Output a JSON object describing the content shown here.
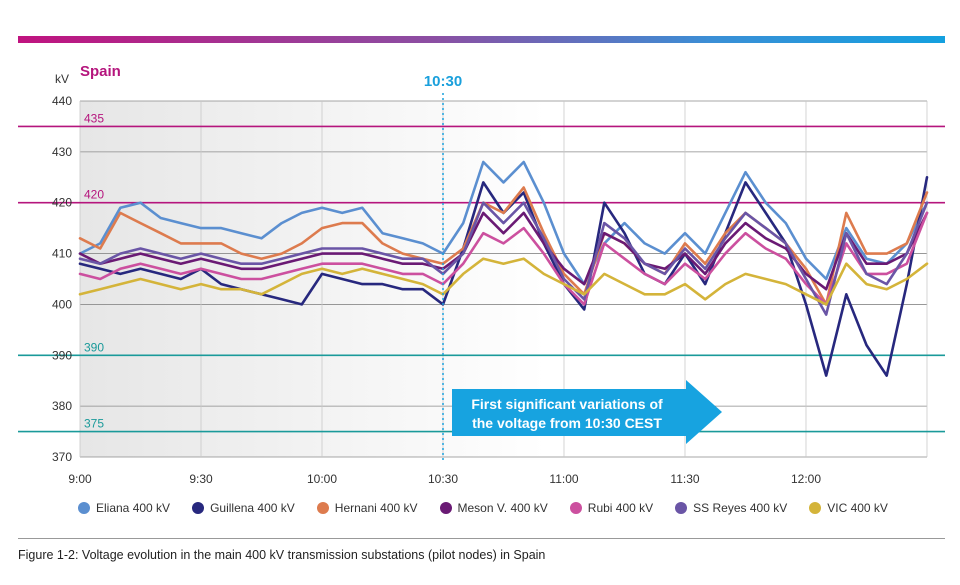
{
  "colors": {
    "accent_magenta": "#b5157d",
    "limit_teal": "#1a9a9a",
    "marker_blue": "#1aa0dc",
    "annotation_fill": "#17a3e0"
  },
  "chart_data": {
    "type": "line",
    "title": "Spain",
    "ylabel": "kV",
    "ylim": [
      370,
      440
    ],
    "yticks": [
      "370",
      "380",
      "390",
      "400",
      "410",
      "420",
      "430",
      "440"
    ],
    "xlim": [
      "9:00",
      "12:30"
    ],
    "xticks": [
      "9:00",
      "9:30",
      "10:00",
      "10:30",
      "11:00",
      "11:30",
      "12:00"
    ],
    "grid": true,
    "legend_position": "bottom",
    "reference_lines": [
      {
        "label": "435",
        "value": 435,
        "color": "#b5157d"
      },
      {
        "label": "420",
        "value": 420,
        "color": "#b5157d"
      },
      {
        "label": "390",
        "value": 390,
        "color": "#1a9a9a"
      },
      {
        "label": "375",
        "value": 375,
        "color": "#1a9a9a"
      }
    ],
    "marker": {
      "label": "10:30",
      "x": "10:30"
    },
    "annotation": {
      "line1": "First significant variations of",
      "line2": "the voltage from 10:30 CEST"
    },
    "x": [
      "9:00",
      "9:05",
      "9:10",
      "9:15",
      "9:20",
      "9:25",
      "9:30",
      "9:35",
      "9:40",
      "9:45",
      "9:50",
      "9:55",
      "10:00",
      "10:05",
      "10:10",
      "10:15",
      "10:20",
      "10:25",
      "10:30",
      "10:35",
      "10:40",
      "10:45",
      "10:50",
      "10:55",
      "11:00",
      "11:05",
      "11:10",
      "11:15",
      "11:20",
      "11:25",
      "11:30",
      "11:35",
      "11:40",
      "11:45",
      "11:50",
      "11:55",
      "12:00",
      "12:05",
      "12:10",
      "12:15",
      "12:20",
      "12:25",
      "12:30"
    ],
    "series": [
      {
        "name": "Eliana 400 kV",
        "color": "#5b8fd0",
        "values": [
          410,
          412,
          419,
          420,
          417,
          416,
          415,
          415,
          414,
          413,
          416,
          418,
          419,
          418,
          419,
          414,
          413,
          412,
          410,
          416,
          428,
          424,
          428,
          420,
          410,
          404,
          412,
          416,
          412,
          410,
          414,
          410,
          418,
          426,
          420,
          416,
          409,
          405,
          415,
          409,
          408,
          412,
          420
        ]
      },
      {
        "name": "Guillena 400 kV",
        "color": "#27287e",
        "values": [
          408,
          407,
          406,
          407,
          406,
          405,
          407,
          404,
          403,
          402,
          401,
          400,
          406,
          405,
          404,
          404,
          403,
          403,
          400,
          411,
          424,
          418,
          422,
          412,
          404,
          399,
          420,
          414,
          406,
          404,
          410,
          404,
          414,
          424,
          418,
          412,
          400,
          386,
          402,
          392,
          386,
          404,
          425
        ]
      },
      {
        "name": "Hernani 400 kV",
        "color": "#dd7b4e",
        "values": [
          413,
          411,
          418,
          416,
          414,
          412,
          412,
          412,
          410,
          409,
          410,
          412,
          415,
          416,
          416,
          412,
          410,
          409,
          408,
          411,
          420,
          418,
          423,
          414,
          406,
          402,
          414,
          412,
          408,
          406,
          412,
          408,
          414,
          418,
          415,
          412,
          407,
          400,
          418,
          410,
          410,
          412,
          422
        ]
      },
      {
        "name": "Meson V. 400 kV",
        "color": "#6a1a74",
        "values": [
          410,
          408,
          409,
          410,
          409,
          408,
          409,
          408,
          407,
          407,
          408,
          409,
          410,
          410,
          410,
          409,
          408,
          408,
          407,
          410,
          418,
          414,
          418,
          412,
          407,
          404,
          414,
          412,
          408,
          407,
          410,
          406,
          412,
          416,
          413,
          411,
          406,
          403,
          414,
          408,
          408,
          410,
          418
        ]
      },
      {
        "name": "Rubi 400 kV",
        "color": "#cc509f",
        "values": [
          406,
          405,
          407,
          408,
          407,
          406,
          407,
          406,
          405,
          405,
          406,
          407,
          408,
          408,
          408,
          407,
          406,
          406,
          404,
          408,
          414,
          412,
          415,
          410,
          404,
          400,
          412,
          409,
          406,
          404,
          408,
          405,
          410,
          414,
          411,
          409,
          404,
          400,
          412,
          406,
          406,
          408,
          418
        ]
      },
      {
        "name": "SS Reyes 400 kV",
        "color": "#6a55a6",
        "values": [
          409,
          408,
          410,
          411,
          410,
          409,
          410,
          409,
          408,
          408,
          409,
          410,
          411,
          411,
          411,
          410,
          409,
          409,
          406,
          410,
          420,
          416,
          420,
          413,
          405,
          401,
          416,
          413,
          408,
          406,
          411,
          407,
          413,
          418,
          415,
          412,
          405,
          398,
          414,
          406,
          404,
          410,
          420
        ]
      },
      {
        "name": "VIC 400 kV",
        "color": "#d4b43a",
        "values": [
          402,
          403,
          404,
          405,
          404,
          403,
          404,
          403,
          403,
          402,
          404,
          406,
          407,
          406,
          407,
          406,
          405,
          404,
          402,
          406,
          409,
          408,
          409,
          406,
          404,
          402,
          406,
          404,
          402,
          402,
          404,
          401,
          404,
          406,
          405,
          404,
          402,
          400,
          408,
          404,
          403,
          405,
          408
        ]
      }
    ]
  },
  "caption": "Figure 1-2: Voltage evolution in the main 400 kV transmission substations (pilot nodes) in Spain"
}
